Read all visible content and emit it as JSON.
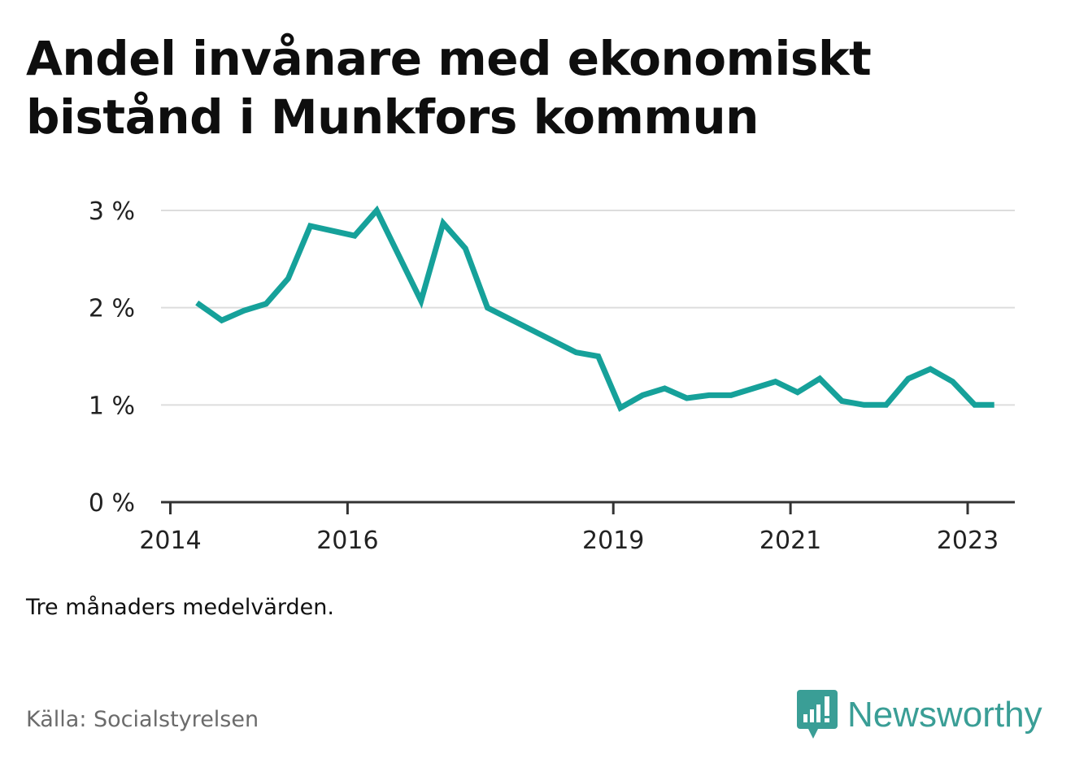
{
  "title": "Andel invånare med ekonomiskt bistånd i Munkfors kommun",
  "note": "Tre månaders medelvärden.",
  "source": "Källa: Socialstyrelsen",
  "brand": "Newsworthy",
  "colors": {
    "line": "#16a19a",
    "grid": "#dddddd",
    "axis": "#333333",
    "brand": "#3a9e96"
  },
  "chart_data": {
    "type": "line",
    "x_ticks": [
      "2014",
      "2016",
      "2019",
      "2021",
      "2023"
    ],
    "y_ticks": [
      "0 %",
      "1 %",
      "2 %",
      "3 %"
    ],
    "ylim": [
      0,
      3
    ],
    "xlim": [
      2014.0,
      2023.5
    ],
    "grid": true,
    "series": [
      {
        "x": [
          2014.3,
          2014.58,
          2014.83,
          2015.08,
          2015.33,
          2015.58,
          2016.08,
          2016.33,
          2016.83,
          2017.08,
          2017.33,
          2017.58,
          2018.58,
          2018.83,
          2019.08,
          2019.33,
          2019.58,
          2019.83,
          2020.08,
          2020.33,
          2020.58,
          2020.83,
          2021.08,
          2021.33,
          2021.58,
          2021.83,
          2022.08,
          2022.33,
          2022.58,
          2022.83,
          2023.08,
          2023.3
        ],
        "y": [
          2.05,
          1.87,
          1.97,
          2.04,
          2.3,
          2.84,
          2.74,
          3.0,
          2.07,
          2.87,
          2.61,
          2.0,
          1.54,
          1.5,
          0.97,
          1.1,
          1.17,
          1.07,
          1.1,
          1.1,
          1.17,
          1.24,
          1.13,
          1.27,
          1.04,
          1.0,
          1.0,
          1.27,
          1.37,
          1.24,
          1.0,
          1.0
        ]
      }
    ]
  }
}
